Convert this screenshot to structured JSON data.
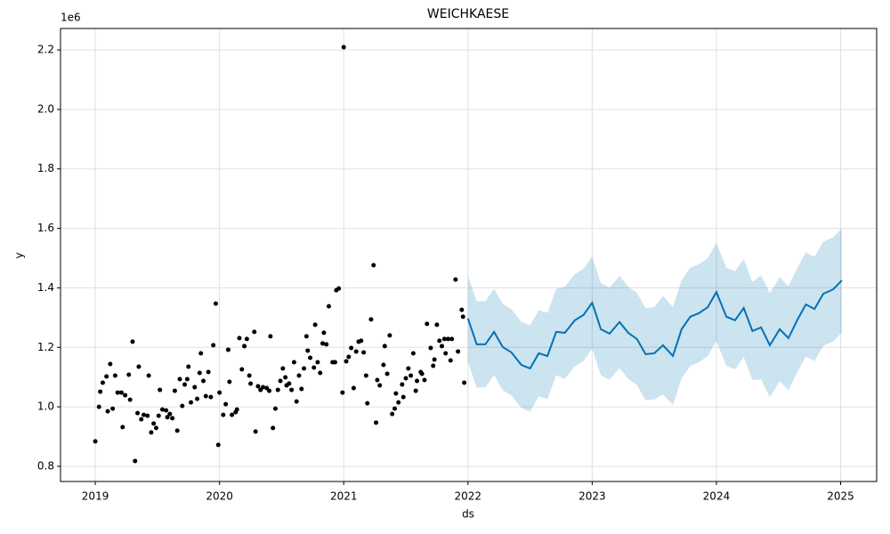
{
  "chart_data": {
    "type": "forecast",
    "title": "WEICHKAESE",
    "xlabel": "ds",
    "ylabel": "y",
    "y_offset_label": "1e6",
    "xlim": [
      2018.72,
      2025.29
    ],
    "xticks": [
      2019,
      2020,
      2021,
      2022,
      2023,
      2024,
      2025
    ],
    "ylim": [
      0.749,
      2.272
    ],
    "yticks": [
      0.8,
      {
        "value": 1.0,
        "label": "1.0"
      },
      1.2,
      1.4,
      1.6,
      1.8,
      {
        "value": 2.0,
        "label": "2.0"
      },
      2.2
    ],
    "grid": true,
    "observed": {
      "color": "#000000",
      "x": [
        2019.0,
        2019.03,
        2019.04,
        2019.06,
        2019.09,
        2019.1,
        2019.12,
        2019.14,
        2019.16,
        2019.18,
        2019.21,
        2019.22,
        2019.24,
        2019.27,
        2019.28,
        2019.3,
        2019.32,
        2019.34,
        2019.35,
        2019.37,
        2019.39,
        2019.42,
        2019.43,
        2019.45,
        2019.47,
        2019.49,
        2019.51,
        2019.52,
        2019.54,
        2019.57,
        2019.58,
        2019.6,
        2019.62,
        2019.64,
        2019.66,
        2019.68,
        2019.7,
        2019.72,
        2019.74,
        2019.75,
        2019.77,
        2019.8,
        2019.82,
        2019.84,
        2019.85,
        2019.87,
        2019.89,
        2019.91,
        2019.93,
        2019.95,
        2019.97,
        2019.99,
        2020.0,
        2020.03,
        2020.05,
        2020.07,
        2020.08,
        2020.1,
        2020.13,
        2020.14,
        2020.16,
        2020.18,
        2020.2,
        2020.22,
        2020.24,
        2020.25,
        2020.28,
        2020.29,
        2020.31,
        2020.33,
        2020.35,
        2020.38,
        2020.4,
        2020.41,
        2020.43,
        2020.45,
        2020.47,
        2020.49,
        2020.51,
        2020.53,
        2020.54,
        2020.56,
        2020.58,
        2020.6,
        2020.62,
        2020.64,
        2020.66,
        2020.68,
        2020.7,
        2020.71,
        2020.73,
        2020.76,
        2020.77,
        2020.79,
        2020.81,
        2020.83,
        2020.84,
        2020.86,
        2020.88,
        2020.91,
        2020.93,
        2020.94,
        2020.96,
        2020.99,
        2021.0,
        2021.02,
        2021.04,
        2021.06,
        2021.08,
        2021.1,
        2021.12,
        2021.14,
        2021.16,
        2021.18,
        2021.19,
        2021.22,
        2021.24,
        2021.26,
        2021.27,
        2021.29,
        2021.32,
        2021.33,
        2021.35,
        2021.37,
        2021.39,
        2021.41,
        2021.42,
        2021.44,
        2021.47,
        2021.48,
        2021.5,
        2021.52,
        2021.54,
        2021.56,
        2021.58,
        2021.59,
        2021.62,
        2021.63,
        2021.65,
        2021.67,
        2021.7,
        2021.72,
        2021.73,
        2021.75,
        2021.77,
        2021.79,
        2021.81,
        2021.82,
        2021.84,
        2021.86,
        2021.87,
        2021.9,
        2021.92,
        2021.95,
        2021.96,
        2021.97
      ],
      "values": [
        0.884,
        1.0,
        1.051,
        1.081,
        1.102,
        0.985,
        1.144,
        0.994,
        1.105,
        1.048,
        1.048,
        0.932,
        1.039,
        1.108,
        1.024,
        1.219,
        0.818,
        0.979,
        1.135,
        0.958,
        0.973,
        0.97,
        1.105,
        0.914,
        0.944,
        0.929,
        0.97,
        1.057,
        0.991,
        0.988,
        0.965,
        0.976,
        0.962,
        1.054,
        0.92,
        1.093,
        1.003,
        1.075,
        1.093,
        1.135,
        1.015,
        1.066,
        1.027,
        1.114,
        1.18,
        1.087,
        1.036,
        1.117,
        1.033,
        1.207,
        1.347,
        0.872,
        1.048,
        0.973,
        1.009,
        1.192,
        1.084,
        0.973,
        0.982,
        0.991,
        1.231,
        1.126,
        1.204,
        1.228,
        1.105,
        1.078,
        1.252,
        0.917,
        1.069,
        1.057,
        1.066,
        1.063,
        1.054,
        1.237,
        0.929,
        0.994,
        1.057,
        1.087,
        1.129,
        1.099,
        1.072,
        1.078,
        1.057,
        1.15,
        1.018,
        1.105,
        1.06,
        1.129,
        1.237,
        1.189,
        1.165,
        1.132,
        1.276,
        1.15,
        1.114,
        1.213,
        1.249,
        1.21,
        1.338,
        1.15,
        1.15,
        1.392,
        1.398,
        1.048,
        2.209,
        1.153,
        1.168,
        1.198,
        1.063,
        1.186,
        1.219,
        1.222,
        1.183,
        1.105,
        1.012,
        1.294,
        1.476,
        0.947,
        1.09,
        1.072,
        1.141,
        1.204,
        1.111,
        1.24,
        0.976,
        0.994,
        1.045,
        1.015,
        1.075,
        1.033,
        1.096,
        1.129,
        1.105,
        1.18,
        1.054,
        1.087,
        1.117,
        1.111,
        1.09,
        1.279,
        1.198,
        1.138,
        1.159,
        1.276,
        1.222,
        1.204,
        1.228,
        1.18,
        1.228,
        1.156,
        1.228,
        1.428,
        1.186,
        1.326,
        1.303,
        1.081
      ]
    },
    "forecast": {
      "color": "#0072b2",
      "band_color": "#0072b2",
      "x": [
        2022.0,
        2022.07,
        2022.14,
        2022.21,
        2022.28,
        2022.35,
        2022.43,
        2022.5,
        2022.57,
        2022.64,
        2022.71,
        2022.78,
        2022.86,
        2022.93,
        2023.0,
        2023.07,
        2023.14,
        2023.22,
        2023.29,
        2023.36,
        2023.43,
        2023.5,
        2023.57,
        2023.65,
        2023.72,
        2023.79,
        2023.86,
        2023.93,
        2024.0,
        2024.08,
        2024.15,
        2024.22,
        2024.29,
        2024.36,
        2024.43,
        2024.51,
        2024.58,
        2024.65,
        2024.72,
        2024.79,
        2024.86,
        2024.94,
        2025.01
      ],
      "values": [
        1.297,
        1.21,
        1.21,
        1.252,
        1.201,
        1.183,
        1.141,
        1.129,
        1.18,
        1.171,
        1.252,
        1.249,
        1.291,
        1.309,
        1.35,
        1.261,
        1.246,
        1.285,
        1.249,
        1.228,
        1.177,
        1.18,
        1.207,
        1.171,
        1.261,
        1.303,
        1.315,
        1.335,
        1.386,
        1.303,
        1.291,
        1.332,
        1.255,
        1.267,
        1.207,
        1.261,
        1.231,
        1.291,
        1.344,
        1.329,
        1.38,
        1.395,
        1.425
      ],
      "upper": [
        1.442,
        1.355,
        1.355,
        1.397,
        1.346,
        1.328,
        1.286,
        1.274,
        1.325,
        1.316,
        1.397,
        1.404,
        1.446,
        1.464,
        1.505,
        1.416,
        1.401,
        1.44,
        1.404,
        1.383,
        1.332,
        1.335,
        1.372,
        1.336,
        1.426,
        1.468,
        1.48,
        1.5,
        1.551,
        1.468,
        1.456,
        1.497,
        1.42,
        1.442,
        1.382,
        1.436,
        1.406,
        1.466,
        1.519,
        1.504,
        1.555,
        1.57,
        1.6
      ],
      "lower": [
        1.152,
        1.065,
        1.065,
        1.107,
        1.056,
        1.038,
        0.996,
        0.984,
        1.035,
        1.026,
        1.107,
        1.094,
        1.136,
        1.154,
        1.195,
        1.106,
        1.091,
        1.13,
        1.094,
        1.073,
        1.022,
        1.025,
        1.042,
        1.006,
        1.096,
        1.138,
        1.15,
        1.17,
        1.221,
        1.138,
        1.126,
        1.167,
        1.09,
        1.092,
        1.032,
        1.086,
        1.056,
        1.116,
        1.169,
        1.154,
        1.205,
        1.22,
        1.25
      ]
    }
  }
}
